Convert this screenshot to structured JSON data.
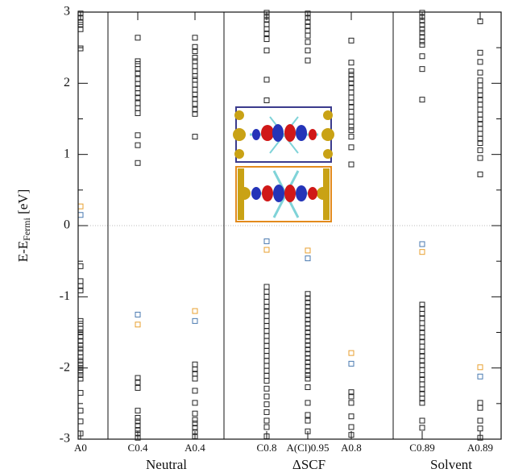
{
  "chart_data": {
    "type": "scatter",
    "y_label": {
      "main": "E-E",
      "sub": "Fermi",
      "unit": " [eV]"
    },
    "categories": [
      "A0",
      "C0.4",
      "A0.4",
      "C0.8",
      "A(Cl)0.95",
      "A0.8",
      "C0.89",
      "A0.89"
    ],
    "groups": [
      {
        "label": "Neutral",
        "categories": [
          "C0.4",
          "A0.4"
        ]
      },
      {
        "label": "ΔSCF",
        "categories": [
          "C0.8",
          "A(Cl)0.95",
          "A0.8"
        ]
      },
      {
        "label": "Solvent",
        "categories": [
          "C0.89",
          "A0.89"
        ]
      }
    ],
    "ylim": [
      -3,
      3
    ],
    "yticks": [
      -3,
      -2,
      -1,
      0,
      1,
      2,
      3
    ],
    "minor_yticks": [
      -2.5,
      -1.5,
      -0.5,
      0.5,
      1.5,
      2.5
    ],
    "zero_line": true,
    "series": [
      {
        "color": "#222222",
        "values": [
          [
            2.98,
            2.92,
            2.86,
            2.82,
            2.76,
            2.49,
            -0.57,
            -0.78,
            -0.85,
            -0.91,
            -1.34,
            -1.38,
            -1.45,
            -1.5,
            -1.56,
            -1.62,
            -1.68,
            -1.73,
            -1.78,
            -1.85,
            -1.9,
            -1.95,
            -2.0,
            -2.05,
            -2.1,
            -2.15,
            -2.35,
            -2.6,
            -2.75,
            -2.92
          ],
          [
            2.64,
            2.31,
            2.27,
            2.2,
            2.14,
            2.06,
            1.99,
            1.93,
            1.86,
            1.8,
            1.72,
            1.65,
            1.58,
            1.27,
            1.13,
            0.88,
            -2.14,
            -2.2,
            -2.28,
            -2.6,
            -2.7,
            -2.75,
            -2.81,
            -2.87,
            -2.92,
            -2.98
          ],
          [
            2.64,
            2.51,
            2.45,
            2.36,
            2.31,
            2.24,
            2.17,
            2.1,
            2.05,
            1.98,
            1.91,
            1.84,
            1.78,
            1.71,
            1.63,
            1.57,
            1.25,
            -1.95,
            -2.02,
            -2.08,
            -2.15,
            -2.32,
            -2.49,
            -2.64,
            -2.73,
            -2.78,
            -2.84,
            -2.9,
            -2.96
          ],
          [
            2.99,
            2.94,
            2.89,
            2.83,
            2.76,
            2.7,
            2.62,
            2.46,
            2.05,
            1.76,
            -0.86,
            -0.93,
            -1.0,
            -1.07,
            -1.14,
            -1.2,
            -1.27,
            -1.34,
            -1.41,
            -1.48,
            -1.55,
            -1.62,
            -1.69,
            -1.76,
            -1.83,
            -1.9,
            -1.97,
            -2.04,
            -2.11,
            -2.18,
            -2.29,
            -2.4,
            -2.51,
            -2.62,
            -2.74,
            -2.83,
            -2.96
          ],
          [
            2.98,
            2.92,
            2.86,
            2.8,
            2.74,
            2.67,
            2.58,
            2.46,
            2.32,
            -0.96,
            -1.02,
            -1.08,
            -1.14,
            -1.2,
            -1.26,
            -1.32,
            -1.38,
            -1.44,
            -1.5,
            -1.56,
            -1.62,
            -1.68,
            -1.74,
            -1.8,
            -1.86,
            -1.92,
            -1.98,
            -2.04,
            -2.1,
            -2.15,
            -2.27,
            -2.49,
            -2.66,
            -2.74,
            -2.89
          ],
          [
            2.6,
            2.29,
            2.17,
            2.12,
            2.06,
            2.0,
            1.94,
            1.87,
            1.8,
            1.73,
            1.67,
            1.6,
            1.53,
            1.46,
            1.39,
            1.34,
            1.25,
            1.1,
            0.86,
            -2.34,
            -2.4,
            -2.49,
            -2.68,
            -2.83,
            -2.94
          ],
          [
            2.99,
            2.93,
            2.88,
            2.82,
            2.76,
            2.71,
            2.65,
            2.59,
            2.54,
            2.38,
            2.2,
            1.77,
            -1.11,
            -1.17,
            -1.24,
            -1.3,
            -1.37,
            -1.44,
            -1.5,
            -1.57,
            -1.63,
            -1.7,
            -1.77,
            -1.83,
            -1.9,
            -1.96,
            -2.03,
            -2.1,
            -2.16,
            -2.23,
            -2.3,
            -2.36,
            -2.43,
            -2.49,
            -2.74,
            -2.84
          ],
          [
            2.87,
            2.43,
            2.3,
            2.15,
            2.04,
            1.97,
            1.9,
            1.83,
            1.77,
            1.7,
            1.63,
            1.56,
            1.49,
            1.43,
            1.36,
            1.29,
            1.22,
            1.16,
            1.06,
            0.95,
            0.72,
            -2.49,
            -2.56,
            -2.74,
            -2.85,
            -2.98
          ]
        ]
      },
      {
        "color": "#e8a030",
        "values": [
          [
            0.27
          ],
          [
            -1.39
          ],
          [
            -1.2
          ],
          [
            -0.34
          ],
          [
            -0.35
          ],
          [
            -1.79
          ],
          [
            -0.37
          ],
          [
            -1.99
          ]
        ]
      },
      {
        "color": "#4a7ab0",
        "values": [
          [
            0.15
          ],
          [
            -1.25
          ],
          [
            -1.34
          ],
          [
            -0.22
          ],
          [
            -0.46
          ],
          [
            -1.94
          ],
          [
            -0.26
          ],
          [
            -2.12
          ]
        ]
      }
    ]
  }
}
